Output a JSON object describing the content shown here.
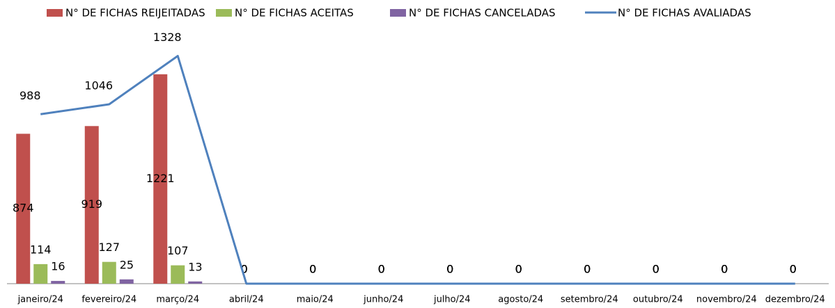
{
  "chart_data": {
    "type": "bar_line",
    "categories": [
      "janeiro/24",
      "fevereiro/24",
      "março/24",
      "abril/24",
      "maio/24",
      "junho/24",
      "julho/24",
      "agosto/24",
      "setembro/24",
      "outubro/24",
      "novembro/24",
      "dezembro/24"
    ],
    "series": [
      {
        "name": "N° DE FICHAS REIJEITADAS",
        "type": "bar",
        "color": "#c0504d",
        "values": [
          874,
          919,
          1221,
          0,
          0,
          0,
          0,
          0,
          0,
          0,
          0,
          0
        ]
      },
      {
        "name": "N° DE FICHAS ACEITAS",
        "type": "bar",
        "color": "#9bbb59",
        "values": [
          114,
          127,
          107,
          0,
          0,
          0,
          0,
          0,
          0,
          0,
          0,
          0
        ]
      },
      {
        "name": "N° DE FICHAS CANCELADAS",
        "type": "bar",
        "color": "#8064a2",
        "values": [
          16,
          25,
          13,
          0,
          0,
          0,
          0,
          0,
          0,
          0,
          0,
          0
        ]
      },
      {
        "name": "N° DE FICHAS AVALIADAS",
        "type": "line",
        "color": "#4f81bd",
        "values": [
          988,
          1046,
          1328,
          0,
          0,
          0,
          0,
          0,
          0,
          0,
          0,
          0
        ]
      }
    ],
    "ylim": [
      0,
      1500
    ]
  }
}
